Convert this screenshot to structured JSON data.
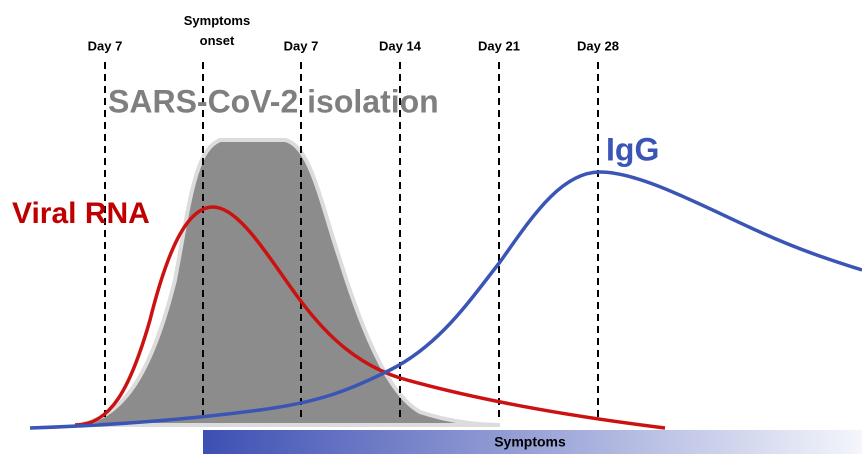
{
  "markers": [
    "Day 7",
    "Symptoms onset",
    "Day 7",
    "Day 14",
    "Day 21",
    "Day 28"
  ],
  "labels": {
    "isolation": "SARS-CoV-2 isolation",
    "rna": "Viral RNA",
    "igg": "IgG",
    "symptoms": "Symptoms"
  }
}
